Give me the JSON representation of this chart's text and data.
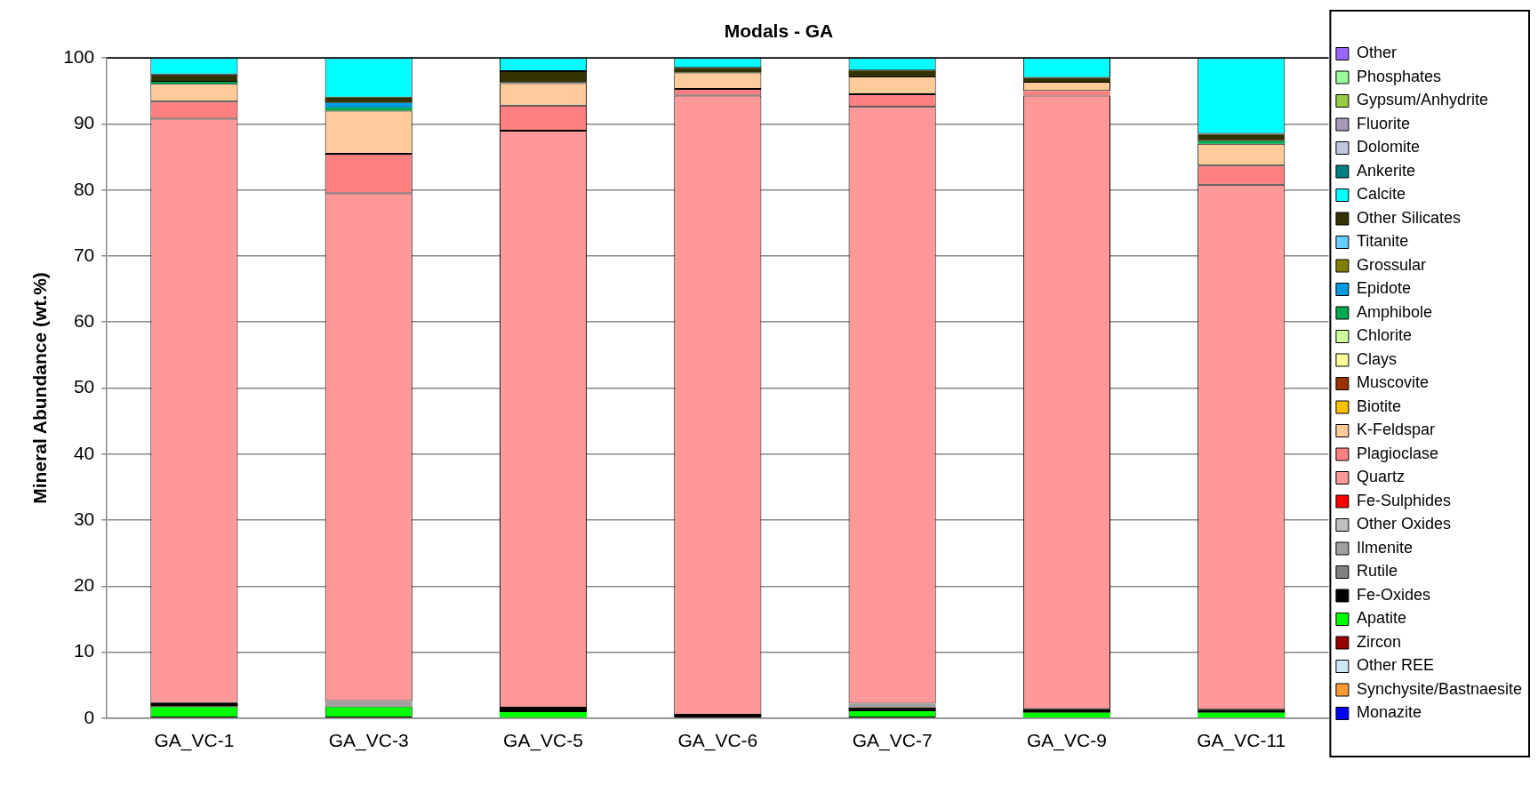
{
  "chart_data": {
    "type": "bar",
    "title": "Modals - GA",
    "ylabel": "Mineral Abundance (wt.%)",
    "categories": [
      "GA_VC-1",
      "GA_VC-3",
      "GA_VC-5",
      "GA_VC-6",
      "GA_VC-7",
      "GA_VC-9",
      "GA_VC-11"
    ],
    "stacked": true,
    "ylim": [
      0,
      100
    ],
    "yticks": [
      0,
      10,
      20,
      30,
      40,
      50,
      60,
      70,
      80,
      90,
      100
    ],
    "grid": "y",
    "legend": "right",
    "series": [
      {
        "name": "Monazite",
        "color": "#0000ff",
        "values": [
          0,
          0,
          0,
          0,
          0,
          0,
          0
        ]
      },
      {
        "name": "Synchysite/Bastnaesite",
        "color": "#ff9933",
        "values": [
          0,
          0,
          0,
          0,
          0,
          0,
          0
        ]
      },
      {
        "name": "Other REE",
        "color": "#cce8f4",
        "values": [
          0,
          0,
          0,
          0,
          0,
          0,
          0
        ]
      },
      {
        "name": "Zircon",
        "color": "#990000",
        "values": [
          0,
          0,
          0,
          0,
          0,
          0,
          0
        ]
      },
      {
        "name": "Apatite",
        "color": "#00ff00",
        "values": [
          1.8,
          1.8,
          0.9,
          0,
          1.2,
          0.8,
          0.8
        ]
      },
      {
        "name": "Fe-Oxides",
        "color": "#000000",
        "values": [
          0.5,
          0,
          0.7,
          0.5,
          0.4,
          0.6,
          0.5
        ]
      },
      {
        "name": "Rutile",
        "color": "#808080",
        "values": [
          0,
          0,
          0,
          0,
          0,
          0,
          0
        ]
      },
      {
        "name": "Ilmenite",
        "color": "#a0a0a0",
        "values": [
          0,
          0.8,
          0,
          0,
          0.6,
          0,
          0
        ]
      },
      {
        "name": "Other Oxides",
        "color": "#c0c0c0",
        "values": [
          0,
          0,
          0,
          0,
          0,
          0,
          0
        ]
      },
      {
        "name": "Fe-Sulphides",
        "color": "#ff0000",
        "values": [
          0,
          0,
          0,
          0,
          0,
          0,
          0
        ]
      },
      {
        "name": "Quartz",
        "color": "#ff9999",
        "values": [
          88.5,
          76.9,
          87.4,
          93.8,
          90.4,
          92.9,
          79.5
        ]
      },
      {
        "name": "Plagioclase",
        "color": "#ff8080",
        "values": [
          2.6,
          6.0,
          3.8,
          1.0,
          1.9,
          0.7,
          2.9
        ]
      },
      {
        "name": "K-Feldspar",
        "color": "#ffcc99",
        "values": [
          2.7,
          6.5,
          3.4,
          2.5,
          2.7,
          1.4,
          3.3
        ]
      },
      {
        "name": "Biotite",
        "color": "#ffc000",
        "values": [
          0,
          0,
          0,
          0,
          0,
          0,
          0
        ]
      },
      {
        "name": "Muscovite",
        "color": "#993300",
        "values": [
          0,
          0,
          0,
          0,
          0,
          0,
          0
        ]
      },
      {
        "name": "Clays",
        "color": "#ffff99",
        "values": [
          0,
          0,
          0,
          0,
          0,
          0,
          0
        ]
      },
      {
        "name": "Chlorite",
        "color": "#ccff99",
        "values": [
          0,
          0,
          0,
          0,
          0,
          0,
          0
        ]
      },
      {
        "name": "Amphibole",
        "color": "#00a850",
        "values": [
          0.3,
          0.5,
          0,
          0,
          0,
          0,
          0.4
        ]
      },
      {
        "name": "Epidote",
        "color": "#0099dd",
        "values": [
          0,
          0.7,
          0,
          0,
          0,
          0,
          0
        ]
      },
      {
        "name": "Grossular",
        "color": "#808000",
        "values": [
          0,
          0,
          0,
          0,
          0,
          0,
          0
        ]
      },
      {
        "name": "Titanite",
        "color": "#66ccff",
        "values": [
          0,
          0,
          0,
          0,
          0,
          0,
          0
        ]
      },
      {
        "name": "Other Silicates",
        "color": "#333300",
        "values": [
          1.1,
          0.8,
          1.8,
          0.7,
          0.9,
          0.6,
          1.1
        ]
      },
      {
        "name": "Calcite",
        "color": "#00ffff",
        "values": [
          2.5,
          6.0,
          2.0,
          1.5,
          1.9,
          3.0,
          11.5
        ]
      },
      {
        "name": "Ankerite",
        "color": "#008080",
        "values": [
          0,
          0,
          0,
          0,
          0,
          0,
          0
        ]
      },
      {
        "name": "Dolomite",
        "color": "#c0c8e0",
        "values": [
          0,
          0,
          0,
          0,
          0,
          0,
          0
        ]
      },
      {
        "name": "Fluorite",
        "color": "#a699b7",
        "values": [
          0,
          0,
          0,
          0,
          0,
          0,
          0
        ]
      },
      {
        "name": "Gypsum/Anhydrite",
        "color": "#99cc44",
        "values": [
          0,
          0,
          0,
          0,
          0,
          0,
          0
        ]
      },
      {
        "name": "Phosphates",
        "color": "#99ff99",
        "values": [
          0,
          0,
          0,
          0,
          0,
          0,
          0
        ]
      },
      {
        "name": "Other",
        "color": "#9966ff",
        "values": [
          0,
          0,
          0,
          0,
          0,
          0,
          0
        ]
      }
    ]
  }
}
